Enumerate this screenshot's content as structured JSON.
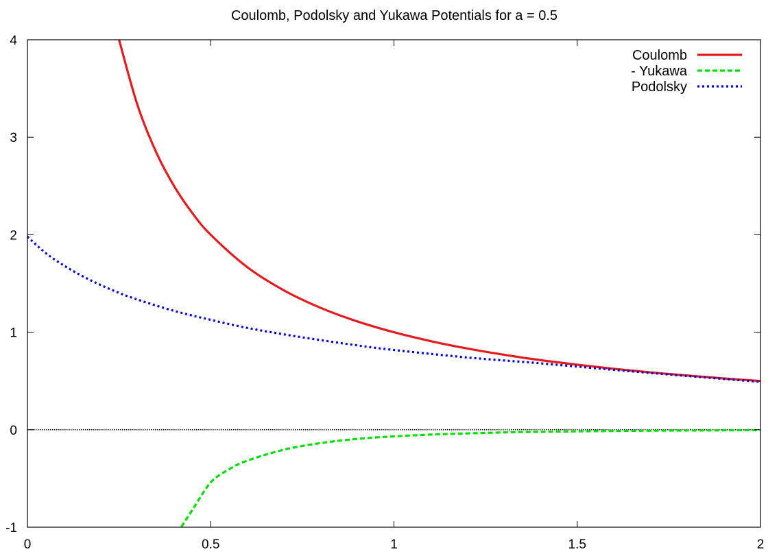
{
  "chart_data": {
    "type": "line",
    "title": "Coulomb, Podolsky and Yukawa Potentials for a = 0.5",
    "xlabel": "",
    "ylabel": "",
    "xlim": [
      0,
      2
    ],
    "ylim": [
      -1,
      4
    ],
    "x_ticks": [
      "0",
      "0.5",
      "1",
      "1.5",
      "2"
    ],
    "y_ticks": [
      "-1",
      "0",
      "1",
      "2",
      "3",
      "4"
    ],
    "grid": false,
    "zero_line": true,
    "legend_position": "top-right",
    "series": [
      {
        "name": "Coulomb",
        "color": "#e41a1c",
        "style": "solid",
        "x": [
          0.25,
          0.3,
          0.35,
          0.4,
          0.45,
          0.5,
          0.6,
          0.7,
          0.8,
          0.9,
          1.0,
          1.1,
          1.2,
          1.3,
          1.4,
          1.5,
          1.6,
          1.7,
          1.8,
          1.9,
          2.0
        ],
        "y": [
          4.0,
          3.333,
          2.857,
          2.5,
          2.222,
          2.0,
          1.667,
          1.429,
          1.25,
          1.111,
          1.0,
          0.909,
          0.833,
          0.769,
          0.714,
          0.667,
          0.625,
          0.588,
          0.556,
          0.526,
          0.5
        ]
      },
      {
        "name": "- Yukawa",
        "color": "#00e000",
        "style": "dashed",
        "x": [
          0.42,
          0.45,
          0.5,
          0.55,
          0.6,
          0.7,
          0.8,
          0.9,
          1.0,
          1.1,
          1.2,
          1.3,
          1.4,
          1.5,
          1.6,
          1.7,
          1.8,
          1.9,
          2.0
        ],
        "y": [
          -0.995,
          -0.823,
          -0.541,
          -0.406,
          -0.317,
          -0.204,
          -0.137,
          -0.094,
          -0.068,
          -0.05,
          -0.038,
          -0.028,
          -0.022,
          -0.017,
          -0.013,
          -0.01,
          -0.008,
          -0.006,
          -0.005
        ]
      },
      {
        "name": "Podolsky",
        "color": "#0000e0",
        "style": "dotted",
        "x": [
          0.0,
          0.05,
          0.1,
          0.15,
          0.2,
          0.25,
          0.3,
          0.4,
          0.5,
          0.6,
          0.7,
          0.8,
          0.9,
          1.0,
          1.2,
          1.4,
          1.6,
          1.8,
          2.0
        ],
        "y": [
          1.98,
          1.812,
          1.683,
          1.576,
          1.484,
          1.404,
          1.335,
          1.219,
          1.127,
          1.044,
          0.978,
          0.919,
          0.865,
          0.818,
          0.741,
          0.681,
          0.614,
          0.551,
          0.491
        ]
      }
    ]
  }
}
